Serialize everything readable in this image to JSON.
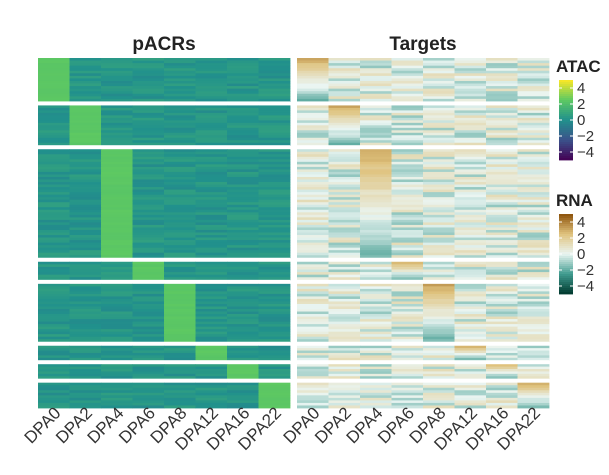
{
  "chart_data": [
    {
      "type": "heatmap",
      "title": "pACRs",
      "columns": [
        "DPA0",
        "DPA2",
        "DPA4",
        "DPA6",
        "DPA8",
        "DPA12",
        "DPA16",
        "DPA22"
      ],
      "color_scale": "ATAC",
      "clusters": [
        {
          "peak_column": "DPA0",
          "row_fraction": 0.12,
          "peak_value": 2.4,
          "background_value": 0.2
        },
        {
          "peak_column": "DPA2",
          "row_fraction": 0.11,
          "peak_value": 2.4,
          "background_value": 0.2
        },
        {
          "peak_column": "DPA4",
          "row_fraction": 0.3,
          "peak_value": 2.4,
          "background_value": 0.2
        },
        {
          "peak_column": "DPA6",
          "row_fraction": 0.05,
          "peak_value": 2.4,
          "background_value": 0.2
        },
        {
          "peak_column": "DPA8",
          "row_fraction": 0.16,
          "peak_value": 2.4,
          "background_value": 0.2
        },
        {
          "peak_column": "DPA12",
          "row_fraction": 0.04,
          "peak_value": 2.4,
          "background_value": 0.2
        },
        {
          "peak_column": "DPA16",
          "row_fraction": 0.04,
          "peak_value": 2.4,
          "background_value": 0.2
        },
        {
          "peak_column": "DPA22",
          "row_fraction": 0.07,
          "peak_value": 2.4,
          "background_value": 0.2
        }
      ]
    },
    {
      "type": "heatmap",
      "title": "Targets",
      "columns": [
        "DPA0",
        "DPA2",
        "DPA4",
        "DPA6",
        "DPA8",
        "DPA12",
        "DPA16",
        "DPA22"
      ],
      "color_scale": "RNA",
      "clusters": [
        {
          "peak_column": "DPA0",
          "row_fraction": 0.12,
          "peak_value": 3.2,
          "background_value": 0.0
        },
        {
          "peak_column": "DPA2",
          "row_fraction": 0.11,
          "peak_value": 3.2,
          "background_value": 0.0
        },
        {
          "peak_column": "DPA4",
          "row_fraction": 0.3,
          "peak_value": 3.2,
          "background_value": 0.0
        },
        {
          "peak_column": "DPA6",
          "row_fraction": 0.05,
          "peak_value": 3.2,
          "background_value": 0.0
        },
        {
          "peak_column": "DPA8",
          "row_fraction": 0.16,
          "peak_value": 3.2,
          "background_value": 0.0
        },
        {
          "peak_column": "DPA12",
          "row_fraction": 0.04,
          "peak_value": 3.2,
          "background_value": 0.0
        },
        {
          "peak_column": "DPA16",
          "row_fraction": 0.04,
          "peak_value": 3.2,
          "background_value": 0.0
        },
        {
          "peak_column": "DPA22",
          "row_fraction": 0.07,
          "peak_value": 3.2,
          "background_value": 0.0
        }
      ]
    }
  ],
  "legends": [
    {
      "title": "ATAC",
      "range": [
        -5,
        5
      ],
      "ticks": [
        4,
        2,
        0,
        -2,
        -4
      ],
      "labels": [
        "4",
        "2",
        "0",
        "−2",
        "−4"
      ],
      "colors": [
        "#440154",
        "#3b528b",
        "#21918c",
        "#5ec962",
        "#fde725"
      ]
    },
    {
      "title": "RNA",
      "range": [
        -5,
        5
      ],
      "ticks": [
        4,
        2,
        0,
        -2,
        -4
      ],
      "labels": [
        "4",
        "2",
        "0",
        "−2",
        "−4"
      ],
      "colors": [
        "#00382d",
        "#3f9b8f",
        "#eaf5f2",
        "#dfc27d",
        "#8c510a"
      ]
    }
  ]
}
